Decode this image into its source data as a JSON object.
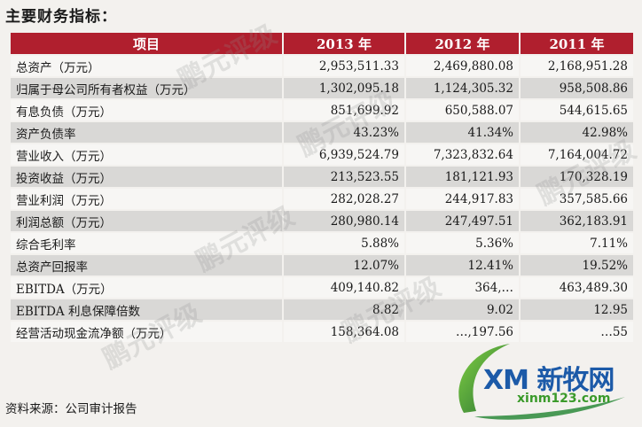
{
  "title": "主要财务指标：",
  "headers": [
    "项目",
    "2013 年",
    "2012 年",
    "2011 年"
  ],
  "rows": [
    {
      "label": "总资产（万元）",
      "v2013": "2,953,511.33",
      "v2012": "2,469,880.08",
      "v2011": "2,168,951.28"
    },
    {
      "label": "归属于母公司所有者权益（万元）",
      "v2013": "1,302,095.18",
      "v2012": "1,124,305.32",
      "v2011": "958,508.86"
    },
    {
      "label": "有息负债（万元）",
      "v2013": "851,699.92",
      "v2012": "650,588.07",
      "v2011": "544,615.65"
    },
    {
      "label": "资产负债率",
      "v2013": "43.23%",
      "v2012": "41.34%",
      "v2011": "42.98%"
    },
    {
      "label": "营业收入（万元）",
      "v2013": "6,939,524.79",
      "v2012": "7,323,832.64",
      "v2011": "7,164,004.72"
    },
    {
      "label": "投资收益（万元）",
      "v2013": "213,523.55",
      "v2012": "181,121.93",
      "v2011": "170,328.19"
    },
    {
      "label": "营业利润（万元）",
      "v2013": "282,028.27",
      "v2012": "244,917.83",
      "v2011": "357,585.66"
    },
    {
      "label": "利润总额（万元）",
      "v2013": "280,980.14",
      "v2012": "247,497.51",
      "v2011": "362,183.91"
    },
    {
      "label": "综合毛利率",
      "v2013": "5.88%",
      "v2012": "5.36%",
      "v2011": "7.11%"
    },
    {
      "label": "总资产回报率",
      "v2013": "12.07%",
      "v2012": "12.41%",
      "v2011": "19.52%"
    },
    {
      "label": "EBITDA（万元）",
      "v2013": "409,140.82",
      "v2012": "364,…",
      "v2011": "463,489.30"
    },
    {
      "label": "EBITDA 利息保障倍数",
      "v2013": "8.82",
      "v2012": "9.02",
      "v2011": "12.95"
    },
    {
      "label": "经营活动现金流净额（万元）",
      "v2013": "158,364.08",
      "v2012": "…,197.56",
      "v2011": "…55"
    }
  ],
  "source": "资料来源：公司审计报告",
  "watermark_text": "鹏元评级",
  "logo": {
    "brand": "XM 新牧网",
    "site": "xinm123.com",
    "color_green": "#3a9a2a",
    "color_blue": "#1c5aa8"
  }
}
